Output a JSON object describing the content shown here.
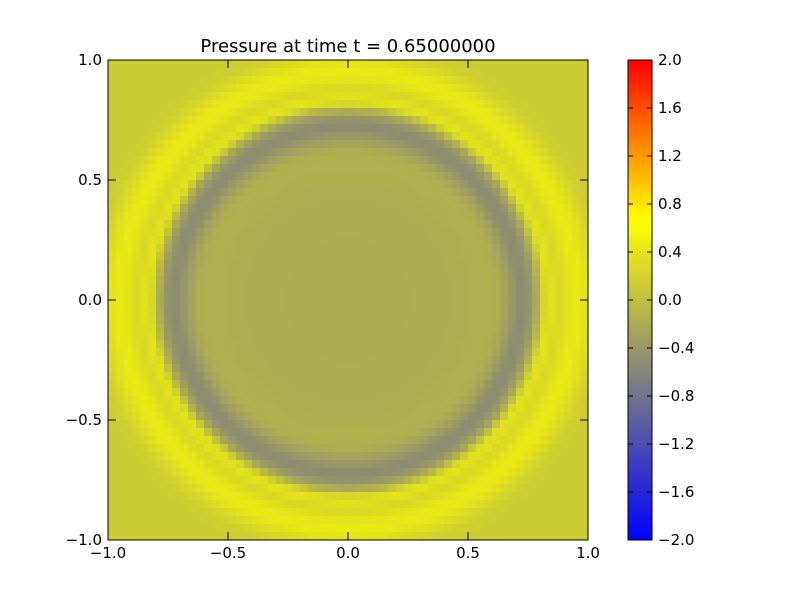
{
  "chart_data": {
    "type": "heatmap",
    "title": "Pressure at time t =     0.65000000",
    "xlabel": "",
    "ylabel": "",
    "xlim": [
      -1.0,
      1.0
    ],
    "ylim": [
      -1.0,
      1.0
    ],
    "x_ticks": [
      "−1.0",
      "−0.5",
      "0.0",
      "0.5",
      "1.0"
    ],
    "y_ticks": [
      "−1.0",
      "−0.5",
      "0.0",
      "0.5",
      "1.0"
    ],
    "grid_resolution": 60,
    "field": {
      "description_of_pattern": "",
      "center_value": -0.2,
      "ring_radius": 0.73,
      "ring_min_value": -0.7,
      "outer_band_radius": 0.95,
      "outer_band_value": 0.45,
      "background_value": 0.12
    },
    "colorbar": {
      "vmin": -2.0,
      "vmax": 2.0,
      "ticks": [
        "−2.0",
        "−1.6",
        "−1.2",
        "−0.8",
        "−0.4",
        "0.0",
        "0.4",
        "0.8",
        "1.2",
        "1.6",
        "2.0"
      ],
      "colors": [
        "#0000ff",
        "#808080",
        "#ffff00",
        "#ff0000"
      ]
    }
  }
}
